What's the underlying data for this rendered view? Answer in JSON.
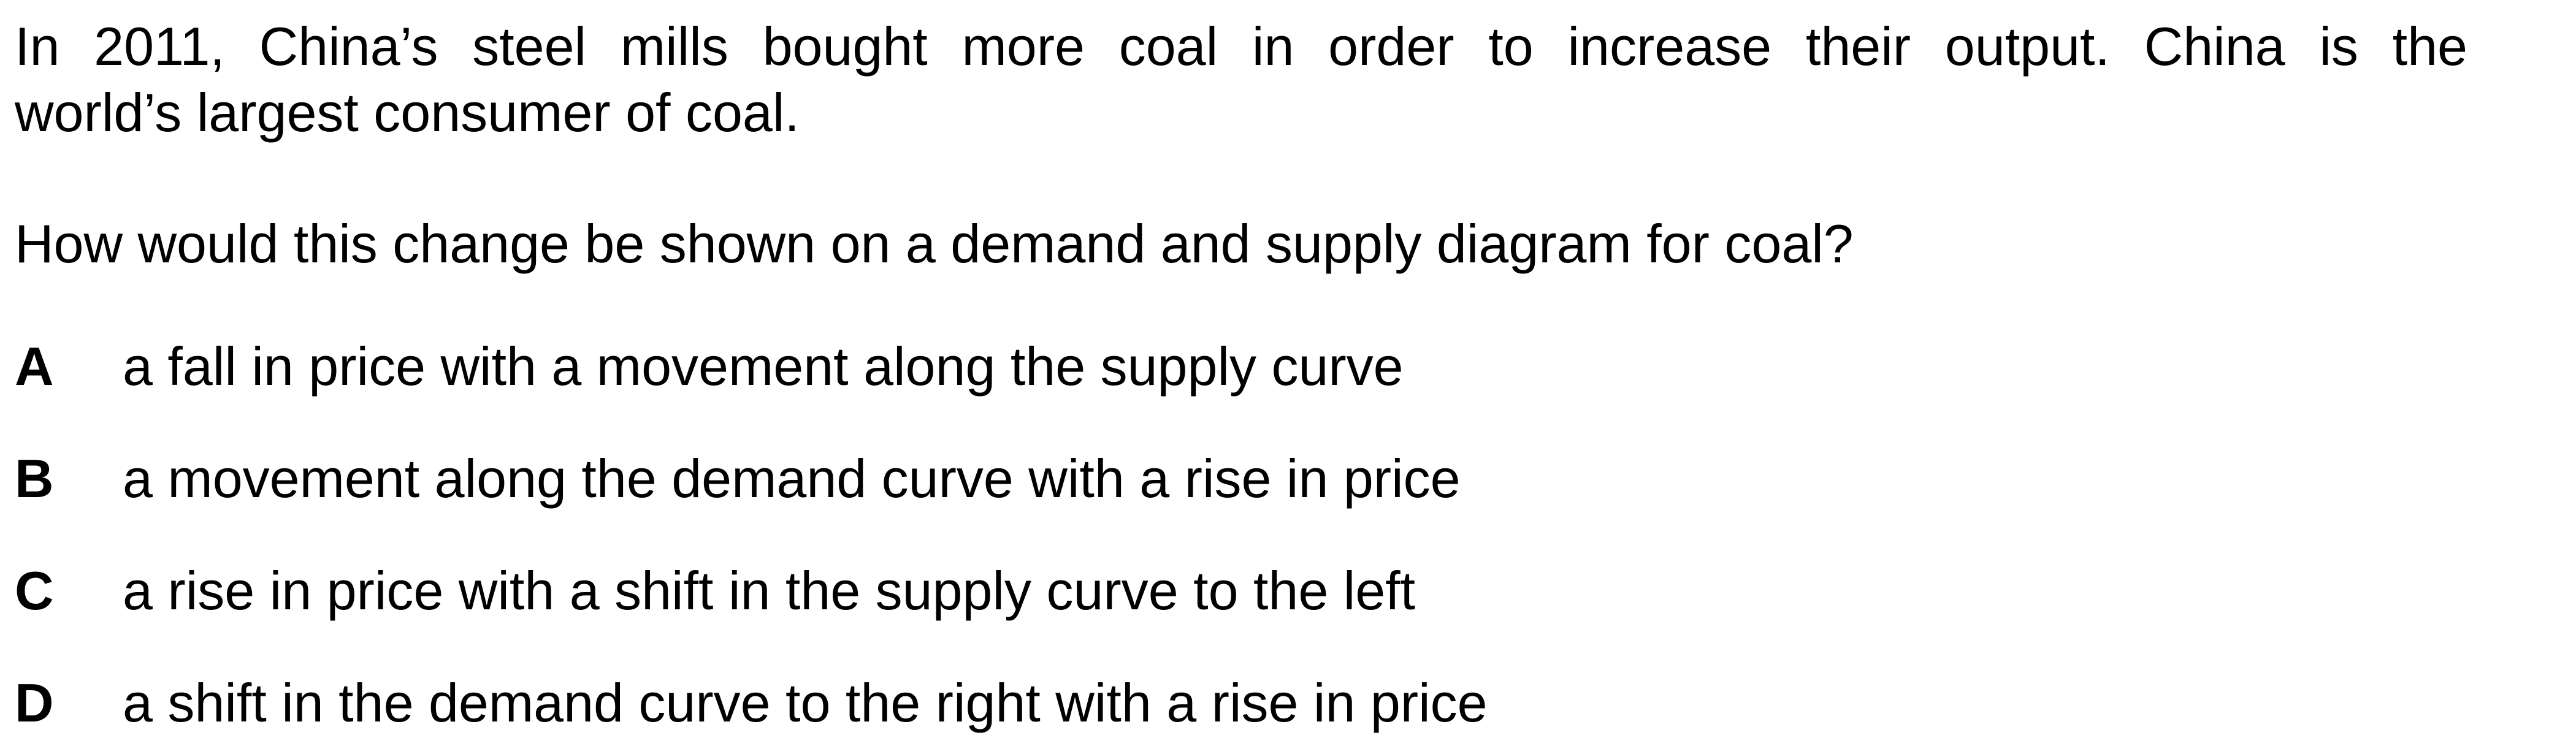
{
  "question": {
    "stem_line_1": "In 2011, China’s steel mills bought more coal in order to increase their output. China is the",
    "stem_line_2": "world’s largest consumer of coal.",
    "prompt": "How would this change be shown on a demand and supply diagram for coal?"
  },
  "options": [
    {
      "letter": "A",
      "text": "a fall in price with a movement along the supply curve"
    },
    {
      "letter": "B",
      "text": "a movement along the demand curve with a rise in price"
    },
    {
      "letter": "C",
      "text": "a rise in price with a shift in the supply curve to the left"
    },
    {
      "letter": "D",
      "text": "a shift in the demand curve to the right with a rise in price"
    }
  ]
}
